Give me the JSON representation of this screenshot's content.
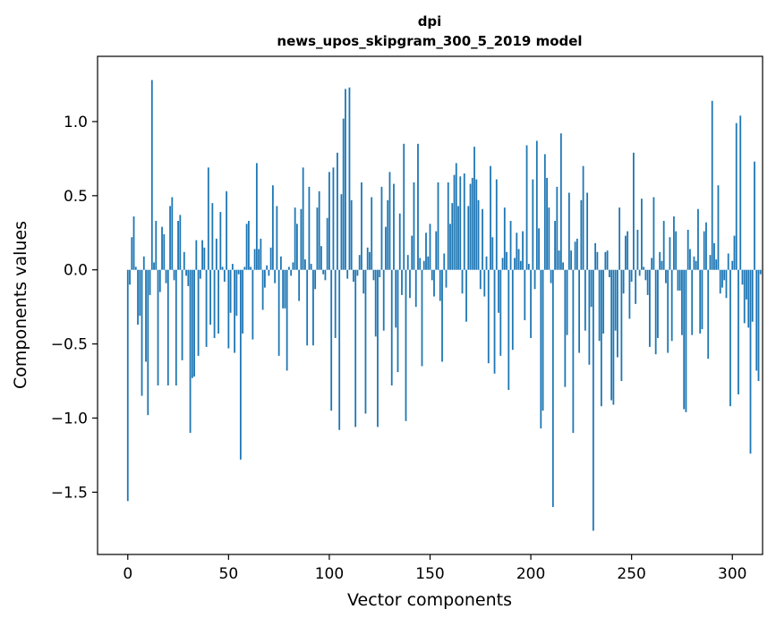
{
  "chart_data": {
    "type": "bar",
    "title_lines": [
      "dpi",
      "news_upos_skipgram_300_5_2019 model"
    ],
    "xlabel": "Vector components",
    "ylabel": "Components values",
    "xlim": [
      -15,
      315
    ],
    "ylim": [
      -1.92,
      1.44
    ],
    "xticks": [
      0,
      50,
      100,
      150,
      200,
      250,
      300
    ],
    "xtick_labels": [
      "0",
      "50",
      "100",
      "150",
      "200",
      "250",
      "300"
    ],
    "yticks": [
      -1.5,
      -1.0,
      -0.5,
      0.0,
      0.5,
      1.0
    ],
    "ytick_labels": [
      "−1.5",
      "−1.0",
      "−0.5",
      "0.0",
      "0.5",
      "1.0"
    ],
    "bar_color": "#1f77b4",
    "grid": false,
    "values": [
      -1.56,
      -0.1,
      0.22,
      0.36,
      0.02,
      -0.37,
      -0.31,
      -0.85,
      0.09,
      -0.62,
      -0.98,
      -0.17,
      1.28,
      0.05,
      0.33,
      -0.78,
      -0.15,
      0.29,
      0.24,
      -0.09,
      -0.78,
      0.43,
      0.49,
      -0.07,
      -0.78,
      0.33,
      0.37,
      -0.61,
      0.12,
      -0.04,
      -0.11,
      -1.1,
      -0.73,
      -0.72,
      0.2,
      -0.58,
      -0.06,
      0.2,
      0.15,
      -0.52,
      0.69,
      -0.37,
      0.45,
      -0.46,
      0.21,
      -0.43,
      0.39,
      0.02,
      -0.08,
      0.53,
      -0.53,
      -0.29,
      0.04,
      -0.56,
      -0.31,
      -0.03,
      -1.28,
      -0.43,
      0.02,
      0.31,
      0.33,
      0.02,
      -0.47,
      0.14,
      0.72,
      0.14,
      0.21,
      -0.27,
      -0.12,
      0.03,
      -0.04,
      0.15,
      0.57,
      -0.09,
      0.43,
      -0.58,
      0.09,
      -0.26,
      -0.26,
      -0.68,
      0.02,
      -0.04,
      0.05,
      0.42,
      0.31,
      -0.21,
      0.41,
      0.69,
      0.07,
      -0.51,
      0.56,
      0.04,
      -0.51,
      -0.13,
      0.42,
      0.53,
      0.16,
      -0.03,
      -0.07,
      0.35,
      0.66,
      -0.95,
      0.69,
      -0.46,
      0.79,
      -1.08,
      0.51,
      1.02,
      1.22,
      -0.06,
      1.23,
      0.47,
      -0.08,
      -1.06,
      -0.04,
      0.1,
      0.59,
      -0.16,
      -0.97,
      0.15,
      0.12,
      0.49,
      -0.07,
      -0.45,
      -1.06,
      -0.05,
      0.56,
      -0.41,
      0.29,
      0.47,
      0.66,
      -0.78,
      0.58,
      -0.39,
      -0.69,
      0.38,
      -0.17,
      0.85,
      -1.02,
      0.1,
      -0.19,
      0.23,
      0.59,
      -0.25,
      0.85,
      0.08,
      -0.65,
      0.06,
      0.25,
      0.09,
      0.31,
      -0.07,
      -0.18,
      0.26,
      0.59,
      -0.21,
      -0.62,
      0.11,
      -0.12,
      0.59,
      0.31,
      0.45,
      0.64,
      0.72,
      0.43,
      0.63,
      -0.16,
      0.65,
      -0.35,
      0.43,
      0.58,
      0.62,
      0.83,
      0.61,
      0.47,
      -0.13,
      0.41,
      -0.18,
      0.09,
      -0.63,
      0.7,
      0.22,
      -0.7,
      0.61,
      -0.29,
      -0.58,
      0.08,
      0.42,
      0.12,
      -0.81,
      0.33,
      -0.54,
      0.08,
      0.25,
      0.14,
      0.06,
      0.26,
      -0.34,
      0.84,
      0.04,
      -0.46,
      0.61,
      -0.13,
      0.87,
      0.28,
      -1.07,
      -0.95,
      0.78,
      0.62,
      0.42,
      -0.09,
      -1.6,
      0.33,
      0.56,
      0.13,
      0.92,
      0.05,
      -0.79,
      -0.44,
      0.52,
      0.13,
      -1.1,
      0.19,
      0.21,
      -0.56,
      0.47,
      0.7,
      -0.41,
      0.52,
      -0.64,
      -0.25,
      -1.76,
      0.18,
      0.12,
      -0.48,
      -0.92,
      -0.43,
      0.12,
      0.13,
      -0.05,
      -0.88,
      -0.91,
      -0.41,
      -0.59,
      0.42,
      -0.75,
      -0.16,
      0.23,
      0.26,
      -0.33,
      -0.08,
      0.79,
      -0.23,
      0.27,
      -0.04,
      0.48,
      0.02,
      -0.07,
      -0.17,
      -0.52,
      0.08,
      0.49,
      -0.57,
      -0.46,
      0.12,
      0.06,
      0.33,
      -0.09,
      -0.56,
      0.22,
      -0.48,
      0.36,
      0.26,
      -0.14,
      -0.14,
      -0.44,
      -0.94,
      -0.96,
      0.27,
      0.14,
      -0.44,
      0.09,
      0.06,
      0.41,
      -0.43,
      -0.4,
      0.26,
      0.32,
      -0.6,
      0.1,
      1.14,
      0.18,
      0.07,
      0.57,
      -0.16,
      -0.12,
      -0.07,
      -0.19,
      0.11,
      -0.92,
      0.06,
      0.23,
      0.99,
      -0.84,
      1.04,
      -0.1,
      -0.36,
      -0.2,
      -0.39,
      -1.24,
      -0.35,
      0.73,
      -0.68,
      -0.75,
      -0.03
    ]
  }
}
